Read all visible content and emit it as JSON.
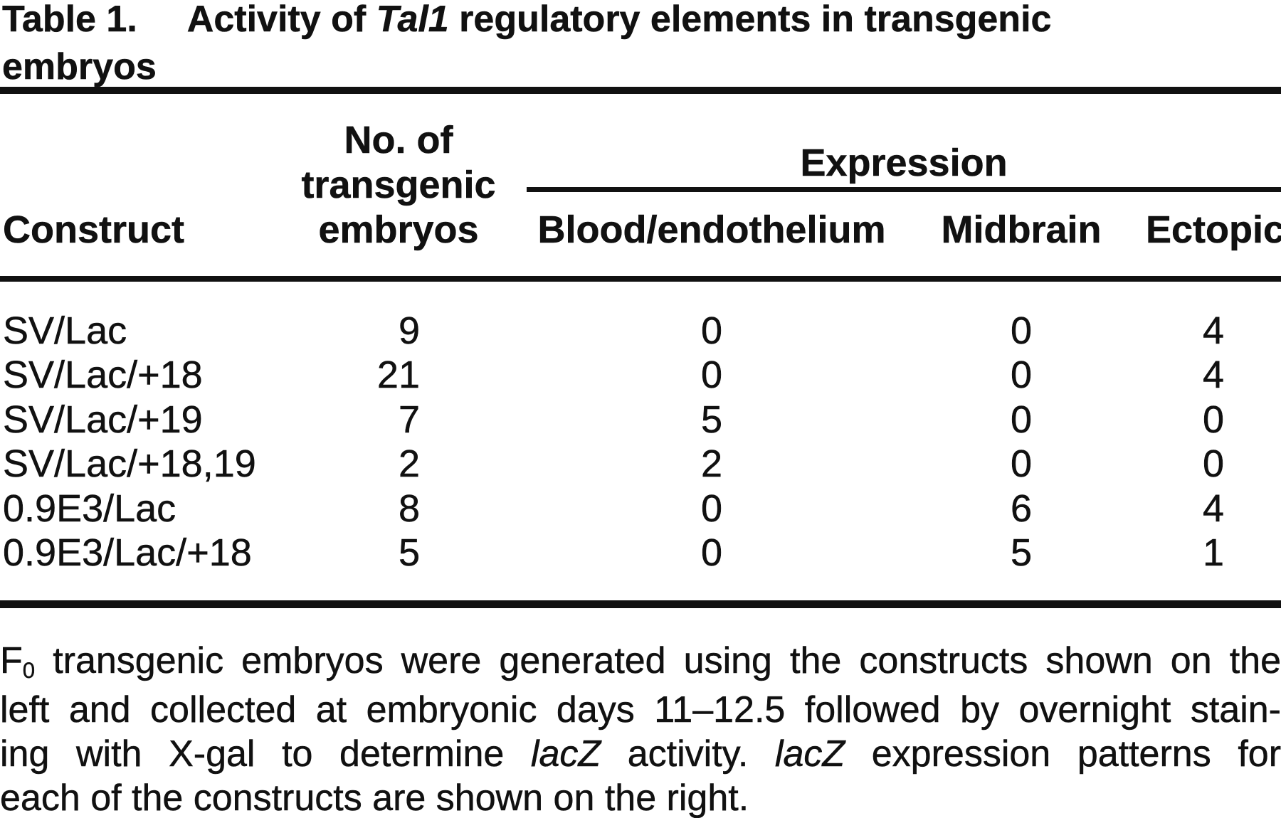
{
  "colors": {
    "text": "#111111",
    "background": "#ffffff",
    "rule": "#111111"
  },
  "title": {
    "label": "Table 1.",
    "caption": {
      "pre": "Activity of ",
      "italic": "Tal1",
      "post": " regulatory elements in transgenic",
      "line2": "embryos"
    }
  },
  "table": {
    "header": {
      "construct": "Construct",
      "n_embryos_lines": [
        "No. of",
        "transgenic",
        "embryos"
      ],
      "expression_group": "Expression",
      "expression_columns": [
        "Blood/endothelium",
        "Midbrain",
        "Ectopic"
      ]
    },
    "rows": [
      {
        "construct": "SV/Lac",
        "n_embryos": "9",
        "blood_endothelium": "0",
        "midbrain": "0",
        "ectopic": "4"
      },
      {
        "construct": "SV/Lac/+18",
        "n_embryos": "21",
        "blood_endothelium": "0",
        "midbrain": "0",
        "ectopic": "4"
      },
      {
        "construct": "SV/Lac/+19",
        "n_embryos": "7",
        "blood_endothelium": "5",
        "midbrain": "0",
        "ectopic": "0"
      },
      {
        "construct": "SV/Lac/+18,19",
        "n_embryos": "2",
        "blood_endothelium": "2",
        "midbrain": "0",
        "ectopic": "0"
      },
      {
        "construct": "0.9E3/Lac",
        "n_embryos": "8",
        "blood_endothelium": "0",
        "midbrain": "6",
        "ectopic": "4"
      },
      {
        "construct": "0.9E3/Lac/+18",
        "n_embryos": "5",
        "blood_endothelium": "0",
        "midbrain": "5",
        "ectopic": "1"
      }
    ]
  },
  "footnote": {
    "lines": [
      {
        "parts": [
          {
            "text": "F"
          },
          {
            "text": "0",
            "style": "subscript"
          },
          {
            "text": " transgenic embryos were generated using the constructs shown on the"
          }
        ]
      },
      {
        "parts": [
          {
            "text": "left and collected at embryonic days 11–12.5 followed by overnight stain-"
          }
        ]
      },
      {
        "parts": [
          {
            "text": "ing with X-gal to determine "
          },
          {
            "text": "lacZ",
            "style": "italic"
          },
          {
            "text": " activity. "
          },
          {
            "text": "lacZ",
            "style": "italic"
          },
          {
            "text": " expression patterns for"
          }
        ]
      },
      {
        "parts": [
          {
            "text": "each of the constructs are shown on the right."
          }
        ]
      }
    ]
  }
}
